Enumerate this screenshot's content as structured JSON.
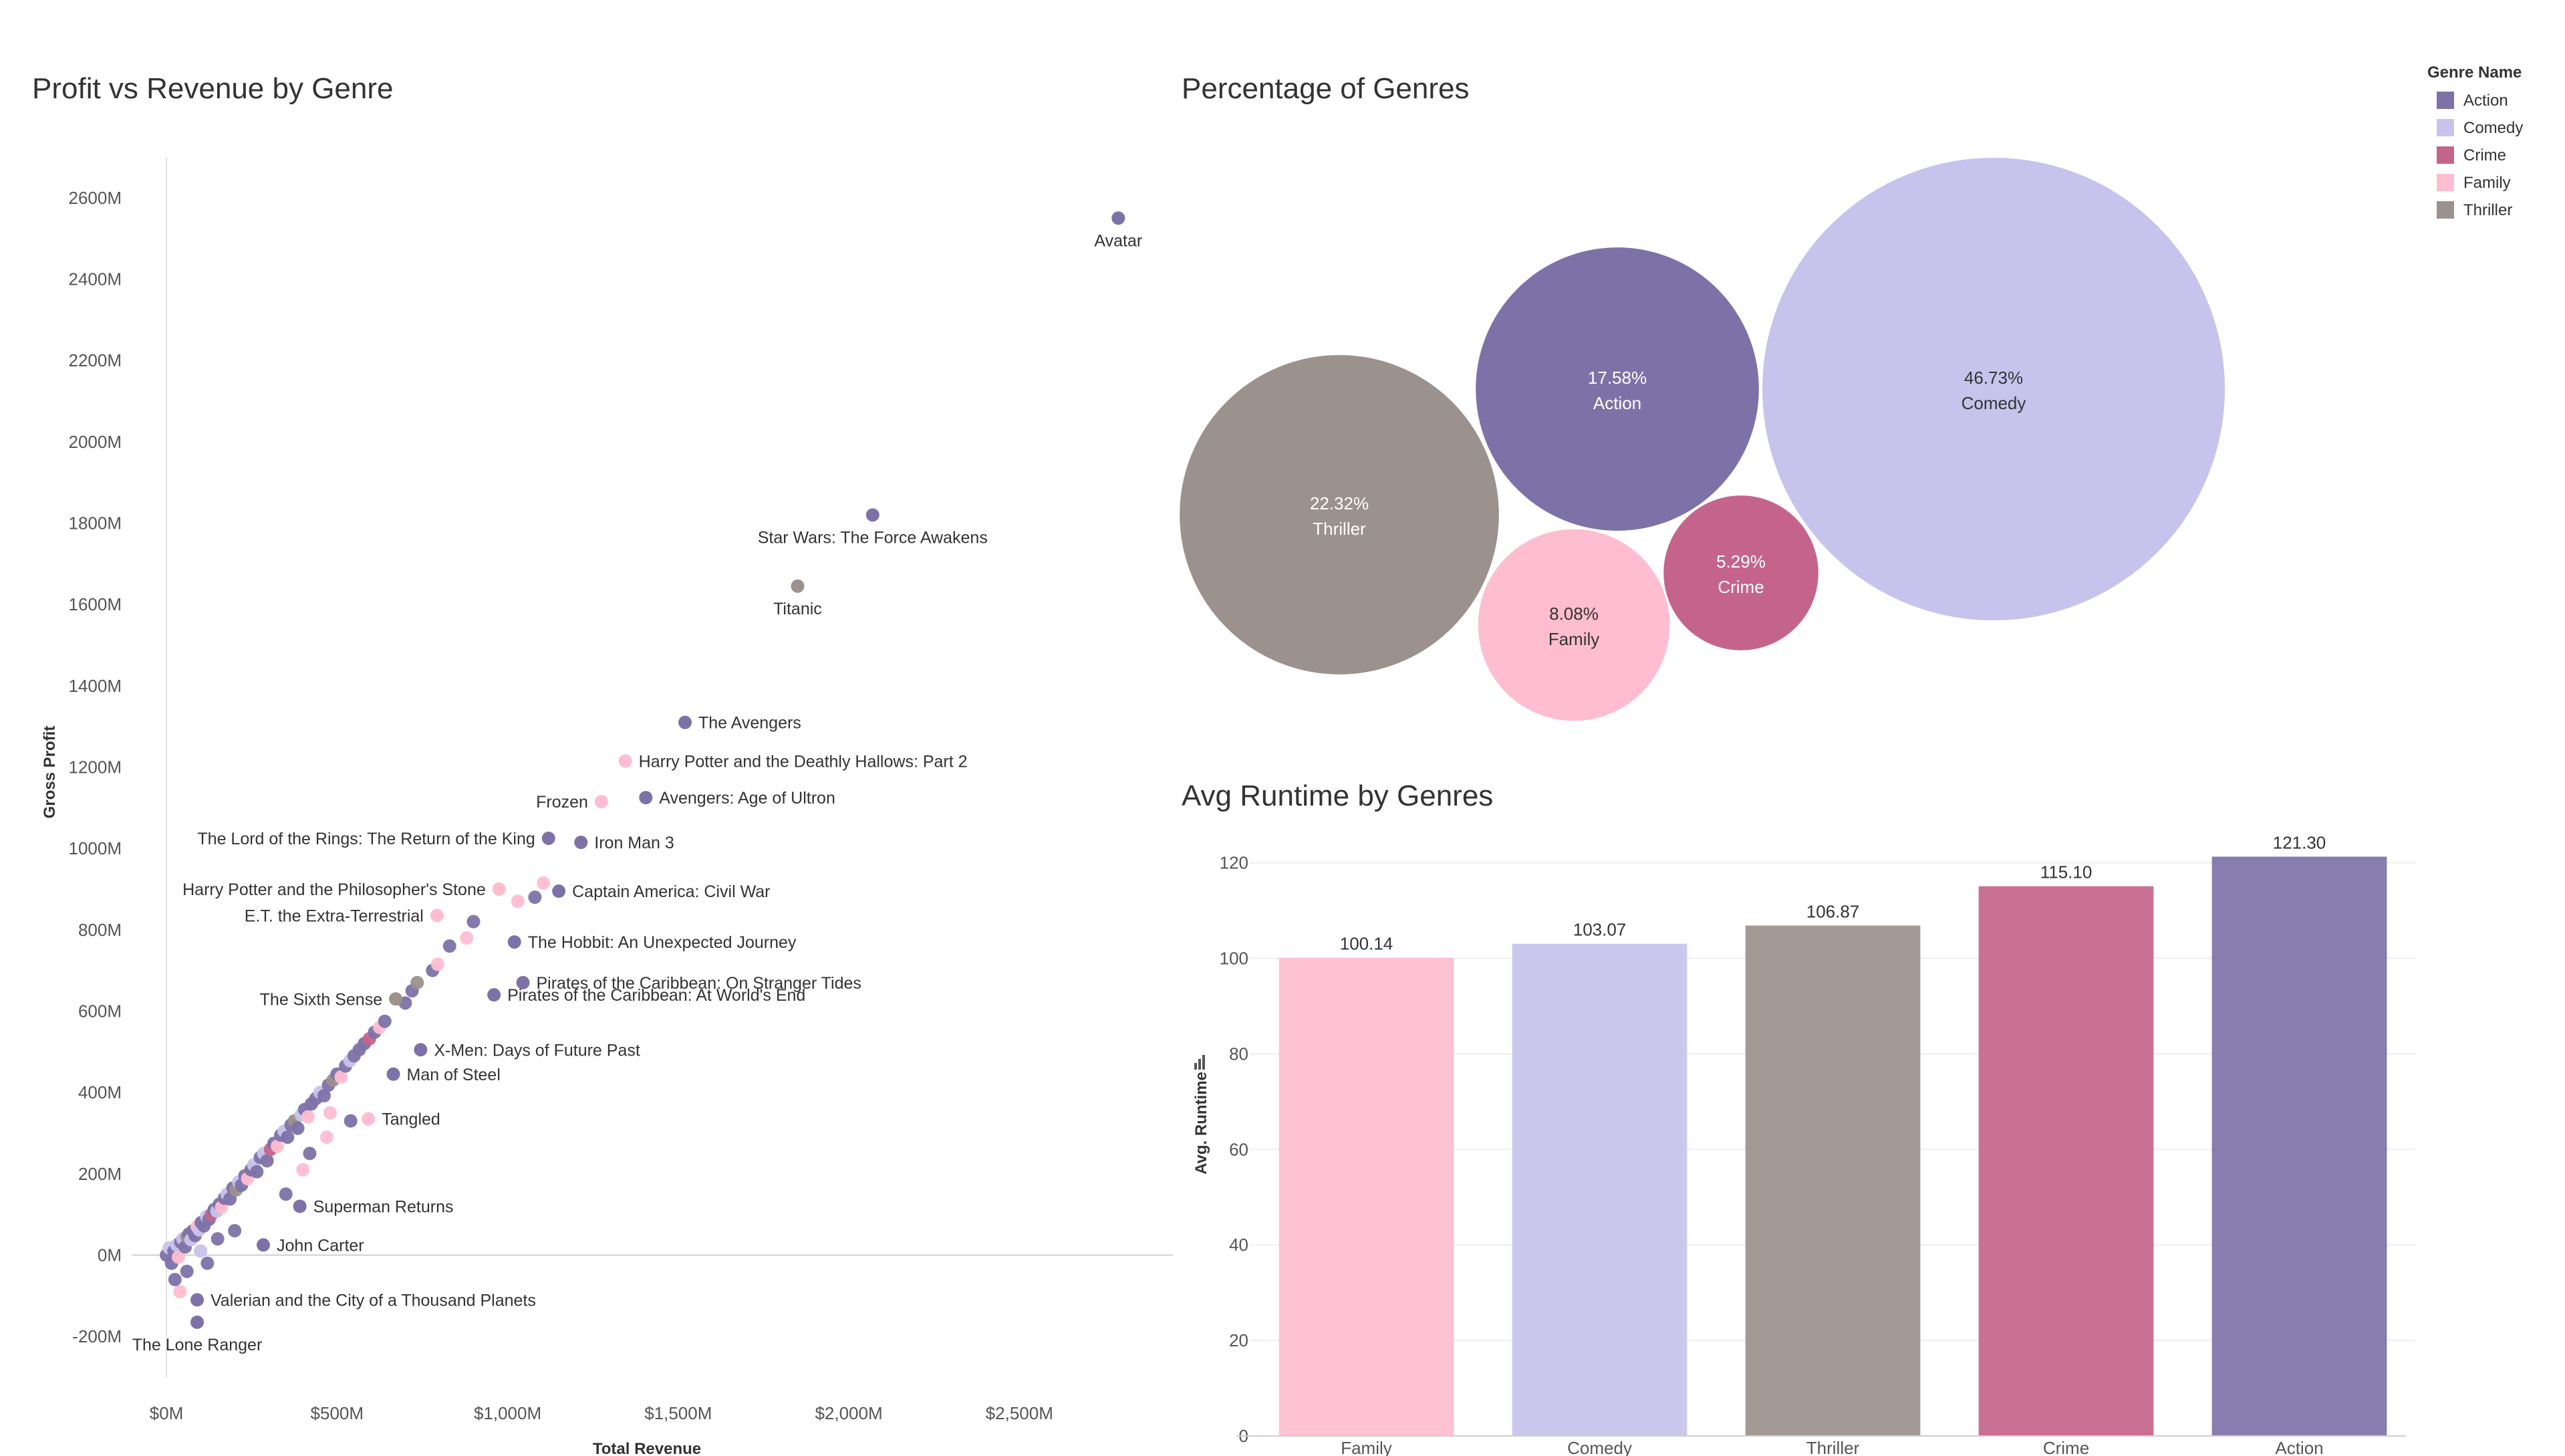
{
  "colors": {
    "Action": "#7d72a8",
    "Comedy": "#c8c3ec",
    "Crime": "#c5648a",
    "Family": "#ffbdd1",
    "Thriller": "#9b918d"
  },
  "legend": {
    "title": "Genre Name",
    "items": [
      "Action",
      "Comedy",
      "Crime",
      "Family",
      "Thriller"
    ]
  },
  "chart_data": [
    {
      "type": "scatter",
      "title": "Profit vs Revenue by Genre",
      "xlabel": "Total Revenue",
      "ylabel": "Gross Profit",
      "xlim": [
        -100,
        2950
      ],
      "ylim": [
        -300,
        2700
      ],
      "x_ticks": [
        0,
        500,
        1000,
        1500,
        2000,
        2500
      ],
      "x_tick_labels": [
        "$0M",
        "$500M",
        "$1,000M",
        "$1,500M",
        "$2,000M",
        "$2,500M"
      ],
      "y_ticks": [
        -200,
        0,
        200,
        400,
        600,
        800,
        1000,
        1200,
        1400,
        1600,
        1800,
        2000,
        2200,
        2400,
        2600
      ],
      "y_tick_labels": [
        "-200M",
        "0M",
        "200M",
        "400M",
        "600M",
        "800M",
        "1000M",
        "1200M",
        "1400M",
        "1600M",
        "1800M",
        "2000M",
        "2200M",
        "2400M",
        "2600M"
      ],
      "units": "millions USD",
      "labeled_points": [
        {
          "label": "Avatar",
          "genre": "Action",
          "x": 2790,
          "y": 2550,
          "anchor": "below"
        },
        {
          "label": "Star Wars: The Force Awakens",
          "genre": "Action",
          "x": 2070,
          "y": 1820,
          "anchor": "below"
        },
        {
          "label": "Titanic",
          "genre": "Thriller",
          "x": 1850,
          "y": 1645,
          "anchor": "below"
        },
        {
          "label": "The Avengers",
          "genre": "Action",
          "x": 1520,
          "y": 1310,
          "anchor": "right"
        },
        {
          "label": "Harry Potter and the Deathly Hallows: Part 2",
          "genre": "Family",
          "x": 1345,
          "y": 1215,
          "anchor": "right"
        },
        {
          "label": "Avengers: Age of Ultron",
          "genre": "Action",
          "x": 1405,
          "y": 1125,
          "anchor": "right"
        },
        {
          "label": "Frozen",
          "genre": "Family",
          "x": 1275,
          "y": 1115,
          "anchor": "left"
        },
        {
          "label": "Iron Man 3",
          "genre": "Action",
          "x": 1215,
          "y": 1015,
          "anchor": "right"
        },
        {
          "label": "The Lord of the Rings: The Return of the King",
          "genre": "Action",
          "x": 1120,
          "y": 1025,
          "anchor": "left"
        },
        {
          "label": "Captain America: Civil War",
          "genre": "Action",
          "x": 1150,
          "y": 895,
          "anchor": "right"
        },
        {
          "label": "Harry Potter and the Philosopher's Stone",
          "genre": "Family",
          "x": 975,
          "y": 900,
          "anchor": "left"
        },
        {
          "label": "E.T. the Extra-Terrestrial",
          "genre": "Family",
          "x": 793,
          "y": 835,
          "anchor": "left"
        },
        {
          "label": "The Hobbit: An Unexpected Journey",
          "genre": "Action",
          "x": 1020,
          "y": 770,
          "anchor": "right"
        },
        {
          "label": "Pirates of the Caribbean: On Stranger Tides",
          "genre": "Action",
          "x": 1045,
          "y": 670,
          "anchor": "right"
        },
        {
          "label": "Pirates of the Caribbean: At World's End",
          "genre": "Action",
          "x": 960,
          "y": 640,
          "anchor": "right"
        },
        {
          "label": "The Sixth Sense",
          "genre": "Thriller",
          "x": 672,
          "y": 630,
          "anchor": "left"
        },
        {
          "label": "X-Men: Days of Future Past",
          "genre": "Action",
          "x": 745,
          "y": 505,
          "anchor": "right"
        },
        {
          "label": "Man of Steel",
          "genre": "Action",
          "x": 665,
          "y": 445,
          "anchor": "right"
        },
        {
          "label": "Tangled",
          "genre": "Family",
          "x": 592,
          "y": 335,
          "anchor": "right"
        },
        {
          "label": "Superman Returns",
          "genre": "Action",
          "x": 391,
          "y": 120,
          "anchor": "right"
        },
        {
          "label": "John Carter",
          "genre": "Action",
          "x": 284,
          "y": 25,
          "anchor": "right"
        },
        {
          "label": "Valerian and the City of a Thousand Planets",
          "genre": "Action",
          "x": 90,
          "y": -110,
          "anchor": "right"
        },
        {
          "label": "The Lone Ranger",
          "genre": "Action",
          "x": 90,
          "y": -165,
          "anchor": "below"
        }
      ],
      "cluster_points": [
        {
          "genre": "Action",
          "x": 0,
          "y": 0
        },
        {
          "genre": "Comedy",
          "x": 8,
          "y": 18
        },
        {
          "genre": "Action",
          "x": 15,
          "y": -20
        },
        {
          "genre": "Action",
          "x": 22,
          "y": 10
        },
        {
          "genre": "Comedy",
          "x": 30,
          "y": 25
        },
        {
          "genre": "Family",
          "x": 35,
          "y": -5
        },
        {
          "genre": "Action",
          "x": 42,
          "y": 32
        },
        {
          "genre": "Comedy",
          "x": 48,
          "y": 40
        },
        {
          "genre": "Action",
          "x": 55,
          "y": 20
        },
        {
          "genre": "Thriller",
          "x": 60,
          "y": 45
        },
        {
          "genre": "Action",
          "x": 66,
          "y": 52
        },
        {
          "genre": "Comedy",
          "x": 72,
          "y": 38
        },
        {
          "genre": "Action",
          "x": 78,
          "y": 60
        },
        {
          "genre": "Action",
          "x": 84,
          "y": 48
        },
        {
          "genre": "Family",
          "x": 90,
          "y": 70
        },
        {
          "genre": "Comedy",
          "x": 96,
          "y": 62
        },
        {
          "genre": "Action",
          "x": 102,
          "y": 80
        },
        {
          "genre": "Action",
          "x": 110,
          "y": 72
        },
        {
          "genre": "Comedy",
          "x": 118,
          "y": 95
        },
        {
          "genre": "Action",
          "x": 125,
          "y": 88
        },
        {
          "genre": "Crime",
          "x": 132,
          "y": 100
        },
        {
          "genre": "Action",
          "x": 140,
          "y": 112
        },
        {
          "genre": "Comedy",
          "x": 148,
          "y": 108
        },
        {
          "genre": "Action",
          "x": 155,
          "y": 125
        },
        {
          "genre": "Family",
          "x": 162,
          "y": 118
        },
        {
          "genre": "Action",
          "x": 170,
          "y": 140
        },
        {
          "genre": "Comedy",
          "x": 178,
          "y": 150
        },
        {
          "genre": "Action",
          "x": 186,
          "y": 138
        },
        {
          "genre": "Action",
          "x": 195,
          "y": 165
        },
        {
          "genre": "Thriller",
          "x": 204,
          "y": 160
        },
        {
          "genre": "Comedy",
          "x": 212,
          "y": 180
        },
        {
          "genre": "Action",
          "x": 220,
          "y": 172
        },
        {
          "genre": "Action",
          "x": 230,
          "y": 195
        },
        {
          "genre": "Family",
          "x": 238,
          "y": 188
        },
        {
          "genre": "Action",
          "x": 248,
          "y": 210
        },
        {
          "genre": "Comedy",
          "x": 256,
          "y": 222
        },
        {
          "genre": "Action",
          "x": 265,
          "y": 205
        },
        {
          "genre": "Action",
          "x": 275,
          "y": 240
        },
        {
          "genre": "Comedy",
          "x": 285,
          "y": 250
        },
        {
          "genre": "Action",
          "x": 295,
          "y": 232
        },
        {
          "genre": "Crime",
          "x": 305,
          "y": 260
        },
        {
          "genre": "Action",
          "x": 315,
          "y": 275
        },
        {
          "genre": "Family",
          "x": 325,
          "y": 268
        },
        {
          "genre": "Action",
          "x": 335,
          "y": 295
        },
        {
          "genre": "Comedy",
          "x": 345,
          "y": 305
        },
        {
          "genre": "Action",
          "x": 355,
          "y": 290
        },
        {
          "genre": "Action",
          "x": 365,
          "y": 320
        },
        {
          "genre": "Thriller",
          "x": 375,
          "y": 330
        },
        {
          "genre": "Action",
          "x": 385,
          "y": 312
        },
        {
          "genre": "Comedy",
          "x": 395,
          "y": 345
        },
        {
          "genre": "Action",
          "x": 405,
          "y": 358
        },
        {
          "genre": "Family",
          "x": 415,
          "y": 340
        },
        {
          "genre": "Action",
          "x": 425,
          "y": 372
        },
        {
          "genre": "Action",
          "x": 438,
          "y": 385
        },
        {
          "genre": "Comedy",
          "x": 450,
          "y": 400
        },
        {
          "genre": "Action",
          "x": 462,
          "y": 392
        },
        {
          "genre": "Action",
          "x": 475,
          "y": 418
        },
        {
          "genre": "Thriller",
          "x": 488,
          "y": 430
        },
        {
          "genre": "Action",
          "x": 500,
          "y": 445
        },
        {
          "genre": "Family",
          "x": 512,
          "y": 438
        },
        {
          "genre": "Action",
          "x": 525,
          "y": 465
        },
        {
          "genre": "Comedy",
          "x": 538,
          "y": 478
        },
        {
          "genre": "Action",
          "x": 550,
          "y": 490
        },
        {
          "genre": "Action",
          "x": 565,
          "y": 505
        },
        {
          "genre": "Action",
          "x": 580,
          "y": 520
        },
        {
          "genre": "Crime",
          "x": 595,
          "y": 532
        },
        {
          "genre": "Action",
          "x": 610,
          "y": 548
        },
        {
          "genre": "Family",
          "x": 625,
          "y": 560
        },
        {
          "genre": "Action",
          "x": 640,
          "y": 575
        },
        {
          "genre": "Action",
          "x": 700,
          "y": 620
        },
        {
          "genre": "Action",
          "x": 720,
          "y": 650
        },
        {
          "genre": "Thriller",
          "x": 735,
          "y": 670
        },
        {
          "genre": "Action",
          "x": 780,
          "y": 700
        },
        {
          "genre": "Family",
          "x": 795,
          "y": 715
        },
        {
          "genre": "Action",
          "x": 830,
          "y": 760
        },
        {
          "genre": "Family",
          "x": 880,
          "y": 780
        },
        {
          "genre": "Action",
          "x": 900,
          "y": 820
        },
        {
          "genre": "Family",
          "x": 1030,
          "y": 870
        },
        {
          "genre": "Action",
          "x": 1080,
          "y": 880
        },
        {
          "genre": "Family",
          "x": 1105,
          "y": 915
        },
        {
          "genre": "Action",
          "x": 200,
          "y": 60
        },
        {
          "genre": "Action",
          "x": 150,
          "y": 40
        },
        {
          "genre": "Comedy",
          "x": 100,
          "y": 10
        },
        {
          "genre": "Action",
          "x": 60,
          "y": -40
        },
        {
          "genre": "Family",
          "x": 40,
          "y": -90
        },
        {
          "genre": "Action",
          "x": 25,
          "y": -60
        },
        {
          "genre": "Action",
          "x": 120,
          "y": -20
        },
        {
          "genre": "Family",
          "x": 400,
          "y": 210
        },
        {
          "genre": "Action",
          "x": 350,
          "y": 150
        },
        {
          "genre": "Action",
          "x": 420,
          "y": 250
        },
        {
          "genre": "Family",
          "x": 470,
          "y": 290
        },
        {
          "genre": "Action",
          "x": 540,
          "y": 330
        },
        {
          "genre": "Family",
          "x": 480,
          "y": 350
        }
      ]
    },
    {
      "type": "bubble",
      "title": "Percentage of Genres",
      "slices": [
        {
          "label": "Comedy",
          "value": 46.73,
          "text": "46.73%"
        },
        {
          "label": "Thriller",
          "value": 22.32,
          "text": "22.32%"
        },
        {
          "label": "Action",
          "value": 17.58,
          "text": "17.58%"
        },
        {
          "label": "Family",
          "value": 8.08,
          "text": "8.08%"
        },
        {
          "label": "Crime",
          "value": 5.29,
          "text": "5.29%"
        }
      ]
    },
    {
      "type": "bar",
      "title": "Avg Runtime by Genres",
      "ylabel": "Avg. Runtime",
      "categories": [
        "Family",
        "Comedy",
        "Thriller",
        "Crime",
        "Action"
      ],
      "values": [
        100.14,
        103.07,
        106.87,
        115.1,
        121.3
      ],
      "value_labels": [
        "100.14",
        "103.07",
        "106.87",
        "115.10",
        "121.30"
      ],
      "ylim": [
        0,
        125
      ],
      "y_ticks": [
        0,
        20,
        40,
        60,
        80,
        100,
        120
      ]
    }
  ]
}
